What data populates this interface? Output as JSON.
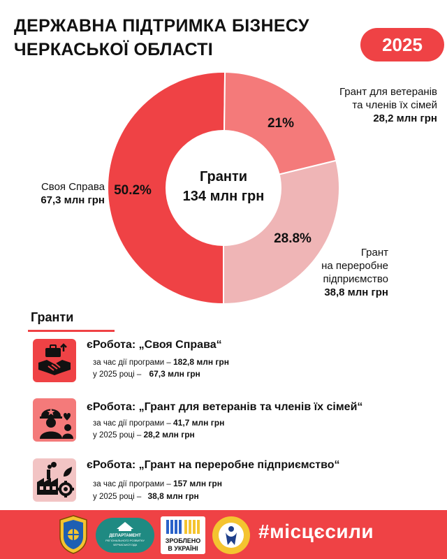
{
  "header": {
    "title_line1": "ДЕРЖАВНА ПІДТРИМКА БІЗНЕСУ",
    "title_line2": "ЧЕРКАСЬКОЇ ОБЛАСТІ",
    "year": "2025"
  },
  "chart_data": {
    "type": "pie",
    "center_label_line1": "Гранти",
    "center_label_line2": "134 млн грн",
    "slices": [
      {
        "pct_label": "50.2%",
        "value": 50.2,
        "name": "Своя Справа",
        "amount": "67,3 млн грн",
        "color": "#ef4245"
      },
      {
        "pct_label": "21%",
        "value": 21,
        "name_line1": "Грант для ветеранів",
        "name_line2": "та членів їх сімей",
        "amount": "28,2 млн грн",
        "color": "#f47a7a"
      },
      {
        "pct_label": "28.8%",
        "value": 28.8,
        "name_line1": "Грант",
        "name_line2": "на переробне",
        "name_line3": "підприємство",
        "amount": "38,8 млн грн",
        "color": "#efb5b6"
      }
    ]
  },
  "grants": {
    "title": "Гранти",
    "items": [
      {
        "title": "єРобота: „Своя Справа“",
        "label1": "за час дії програми –",
        "value1": "182,8 млн грн",
        "label2": "у 2025 році –",
        "value2": "67,3 млн грн",
        "icon": "handshake-icon"
      },
      {
        "title": "єРобота: „Грант для ветеранів та членів їх сімей“",
        "label1": "за час дії програми –",
        "value1": "41,7 млн грн",
        "label2": "у 2025 році –",
        "value2": "28,2 млн грн",
        "icon": "veteran-icon"
      },
      {
        "title": "єРобота: „Грант на переробне підприємство“",
        "label1": "за час дії програми –",
        "value1": "157 млн грн",
        "label2": "у 2025 році –",
        "value2": "38,8 млн грн",
        "icon": "factory-icon"
      }
    ]
  },
  "footer": {
    "dept_logo_line1": "ДЕПАРТАМЕНТ",
    "dept_logo_line2": "РЕГІОНАЛЬНОГО РОЗВИТКУ",
    "dept_logo_line3": "ЧЕРКАСЬКОЇ ОДА",
    "made_line1": "ЗРОБЛЕНО",
    "made_line2": "В УКРАЇНІ",
    "employment_logo": "ДЕРЖАВНА СЛУЖБА ЗАЙНЯТОСТІ",
    "hashtag": "#місцєсили"
  }
}
